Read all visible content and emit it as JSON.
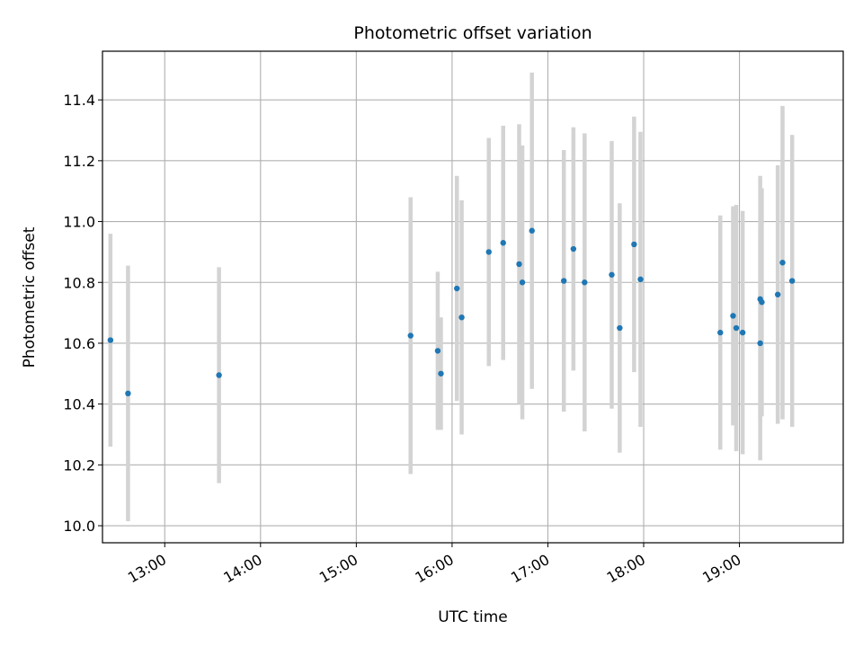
{
  "chart_data": {
    "type": "scatter",
    "title": "Photometric offset variation",
    "xlabel": "UTC time",
    "ylabel": "Photometric offset",
    "x_tick_labels": [
      "13:00",
      "14:00",
      "15:00",
      "16:00",
      "17:00",
      "18:00",
      "19:00"
    ],
    "y_tick_labels": [
      "10.0",
      "10.2",
      "10.4",
      "10.6",
      "10.8",
      "11.0",
      "11.2",
      "11.4"
    ],
    "xlim": [
      "12:21",
      "20:05"
    ],
    "ylim": [
      9.944,
      11.56
    ],
    "grid": true,
    "marker_color": "#1f77b4",
    "errorbar_color": "#d3d3d3",
    "points": [
      {
        "x": "12:26",
        "y": 10.61,
        "err_low": 10.26,
        "err_high": 10.96
      },
      {
        "x": "12:37",
        "y": 10.435,
        "err_low": 10.015,
        "err_high": 10.855
      },
      {
        "x": "13:34",
        "y": 10.495,
        "err_low": 10.14,
        "err_high": 10.85
      },
      {
        "x": "15:34",
        "y": 10.625,
        "err_low": 10.17,
        "err_high": 11.08
      },
      {
        "x": "15:51",
        "y": 10.575,
        "err_low": 10.315,
        "err_high": 10.835
      },
      {
        "x": "15:53",
        "y": 10.5,
        "err_low": 10.315,
        "err_high": 10.685
      },
      {
        "x": "16:03",
        "y": 10.78,
        "err_low": 10.41,
        "err_high": 11.15
      },
      {
        "x": "16:06",
        "y": 10.685,
        "err_low": 10.3,
        "err_high": 11.07
      },
      {
        "x": "16:23",
        "y": 10.9,
        "err_low": 10.525,
        "err_high": 11.275
      },
      {
        "x": "16:32",
        "y": 10.93,
        "err_low": 10.545,
        "err_high": 11.315
      },
      {
        "x": "16:42",
        "y": 10.86,
        "err_low": 10.4,
        "err_high": 11.32
      },
      {
        "x": "16:44",
        "y": 10.8,
        "err_low": 10.35,
        "err_high": 11.25
      },
      {
        "x": "16:50",
        "y": 10.97,
        "err_low": 10.45,
        "err_high": 11.49
      },
      {
        "x": "17:10",
        "y": 10.805,
        "err_low": 10.375,
        "err_high": 11.235
      },
      {
        "x": "17:16",
        "y": 10.91,
        "err_low": 10.51,
        "err_high": 11.31
      },
      {
        "x": "17:23",
        "y": 10.8,
        "err_low": 10.31,
        "err_high": 11.29
      },
      {
        "x": "17:40",
        "y": 10.825,
        "err_low": 10.385,
        "err_high": 11.265
      },
      {
        "x": "17:45",
        "y": 10.65,
        "err_low": 10.24,
        "err_high": 11.06
      },
      {
        "x": "17:54",
        "y": 10.925,
        "err_low": 10.505,
        "err_high": 11.345
      },
      {
        "x": "17:58",
        "y": 10.81,
        "err_low": 10.325,
        "err_high": 11.295
      },
      {
        "x": "18:48",
        "y": 10.635,
        "err_low": 10.25,
        "err_high": 11.02
      },
      {
        "x": "18:56",
        "y": 10.69,
        "err_low": 10.33,
        "err_high": 11.05
      },
      {
        "x": "18:58",
        "y": 10.65,
        "err_low": 10.245,
        "err_high": 11.055
      },
      {
        "x": "19:02",
        "y": 10.635,
        "err_low": 10.235,
        "err_high": 11.035
      },
      {
        "x": "19:13",
        "y": 10.745,
        "err_low": 10.34,
        "err_high": 11.15
      },
      {
        "x": "19:13",
        "y": 10.6,
        "err_low": 10.215,
        "err_high": 10.985
      },
      {
        "x": "19:14",
        "y": 10.735,
        "err_low": 10.36,
        "err_high": 11.11
      },
      {
        "x": "19:24",
        "y": 10.76,
        "err_low": 10.335,
        "err_high": 11.185
      },
      {
        "x": "19:27",
        "y": 10.865,
        "err_low": 10.35,
        "err_high": 11.38
      },
      {
        "x": "19:33",
        "y": 10.805,
        "err_low": 10.325,
        "err_high": 11.285
      }
    ]
  }
}
